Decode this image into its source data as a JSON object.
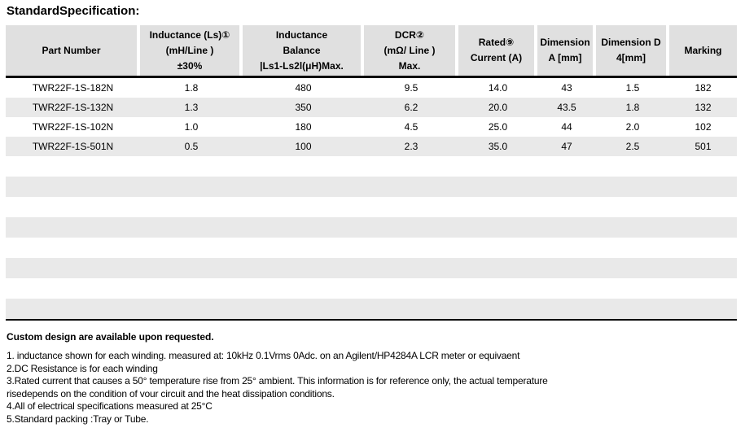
{
  "title": "StandardSpecification:",
  "table": {
    "columns": [
      {
        "lines": [
          "Part Number"
        ]
      },
      {
        "lines": [
          "Inductance (Ls)①",
          "(mH/Line )",
          "±30%"
        ]
      },
      {
        "lines": [
          "Inductance",
          "Balance",
          "|Ls1-Ls2l(μH)Max."
        ]
      },
      {
        "lines": [
          "DCR②",
          "(mΩ/ Line )",
          "Max."
        ]
      },
      {
        "lines": [
          "Rated⑨",
          "Current (A)"
        ]
      },
      {
        "lines": [
          "Dimension",
          "A [mm]"
        ]
      },
      {
        "lines": [
          "Dimension D",
          "4[mm]"
        ]
      },
      {
        "lines": [
          "Marking"
        ]
      }
    ],
    "rows": [
      [
        "TWR22F-1S-182N",
        "1.8",
        "480",
        "9.5",
        "14.0",
        "43",
        "1.5",
        "182"
      ],
      [
        "TWR22F-1S-132N",
        "1.3",
        "350",
        "6.2",
        "20.0",
        "43.5",
        "1.8",
        "132"
      ],
      [
        "TWR22F-1S-102N",
        "1.0",
        "180",
        "4.5",
        "25.0",
        "44",
        "2.0",
        "102"
      ],
      [
        "TWR22F-1S-501N",
        "0.5",
        "100",
        "2.3",
        "35.0",
        "47",
        "2.5",
        "501"
      ]
    ],
    "empty_row_count": 8
  },
  "notes": {
    "heading": "Custom design are available upon requested.",
    "lines": [
      "1. inductance shown for each winding. measured at: 10kHz 0.1Vrms 0Adc. on an Agilent/HP4284A LCR meter or equivaent",
      "2.DC Resistance is for each winding",
      "3.Rated current that causes a 50° temperature rise from 25° ambient. This information is for reference only, the actual temperature",
      "risedepends on the condition of vour circuit and the heat dissipation conditions.",
      "4.All of electrical specifications measured at 25°C",
      "5.Standard packing :Tray or Tube."
    ]
  },
  "colors": {
    "header_bg": "#e0e0e0",
    "stripe_bg": "#e9e9e9",
    "border": "#000000",
    "text": "#000000"
  }
}
